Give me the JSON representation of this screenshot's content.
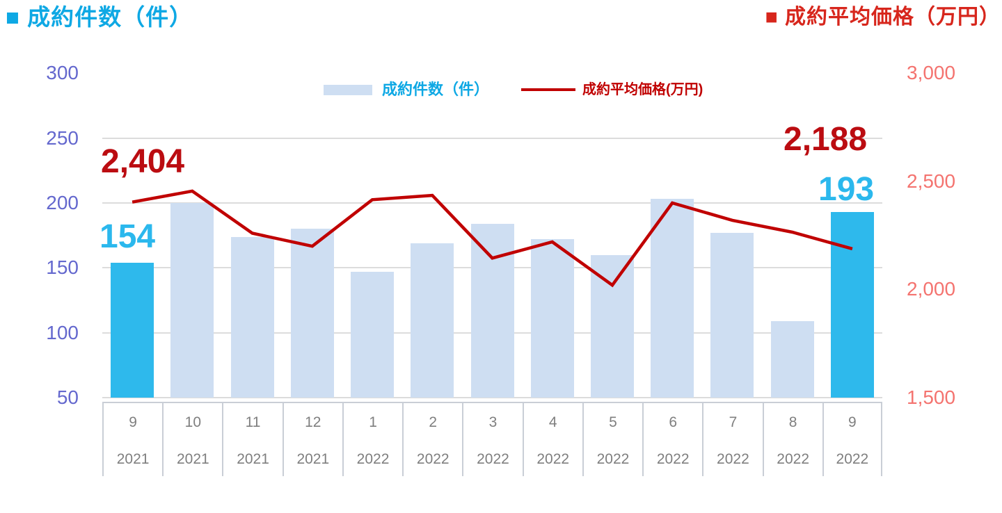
{
  "title_left": "■ 成約件数（件）",
  "title_right": "■ 成約平均価格（万円）",
  "legend": {
    "bar_label": "成約件数（件）",
    "line_label": "成約平均価格(万円)"
  },
  "annotations": {
    "first_price": "2,404",
    "first_count": "154",
    "last_price": "2,188",
    "last_count": "193"
  },
  "chart_data": {
    "type": "combo_bar_line",
    "categories_month": [
      "9",
      "10",
      "11",
      "12",
      "1",
      "2",
      "3",
      "4",
      "5",
      "6",
      "7",
      "8",
      "9"
    ],
    "categories_year": [
      "2021",
      "2021",
      "2021",
      "2021",
      "2022",
      "2022",
      "2022",
      "2022",
      "2022",
      "2022",
      "2022",
      "2022",
      "2022"
    ],
    "series": [
      {
        "name": "成約件数（件）",
        "type": "bar",
        "axis": "left",
        "values": [
          154,
          200,
          174,
          180,
          147,
          169,
          184,
          172,
          160,
          203,
          177,
          109,
          193
        ]
      },
      {
        "name": "成約平均価格(万円)",
        "type": "line",
        "axis": "right",
        "values": [
          2404,
          2455,
          2260,
          2200,
          2415,
          2435,
          2145,
          2220,
          2020,
          2400,
          2320,
          2265,
          2188
        ]
      }
    ],
    "left_axis": {
      "min": 50,
      "max": 300,
      "ticks": [
        {
          "v": 300,
          "label": "300"
        },
        {
          "v": 250,
          "label": "250"
        },
        {
          "v": 200,
          "label": "200"
        },
        {
          "v": 150,
          "label": "150"
        },
        {
          "v": 100,
          "label": "100"
        },
        {
          "v": 50,
          "label": "50"
        }
      ]
    },
    "right_axis": {
      "min": 1500,
      "max": 3000,
      "ticks": [
        {
          "v": 3000,
          "label": "3,000"
        },
        {
          "v": 2500,
          "label": "2,500"
        },
        {
          "v": 2000,
          "label": "2,000"
        },
        {
          "v": 1500,
          "label": "1,500"
        }
      ]
    },
    "gridline_values": [
      250,
      200,
      150,
      100,
      50
    ],
    "highlight_indices": [
      0,
      12
    ],
    "grid": "horizontal",
    "legend_position": "top-center"
  },
  "colors": {
    "cyan_text": "#0EA8E4",
    "cyan_number": "#2BB8ED",
    "bar_default": "#CEDEF2",
    "bar_highlight": "#2EB9EC",
    "line": "#C00000",
    "price_number": "#BB0C11",
    "right_title": "#D7261C",
    "left_axis_label": "#6468CE",
    "right_axis_label": "#F4736F",
    "x_label": "#7F7F7F",
    "gridline": "#DCDCDC",
    "cell_border": "#C9CED6"
  }
}
